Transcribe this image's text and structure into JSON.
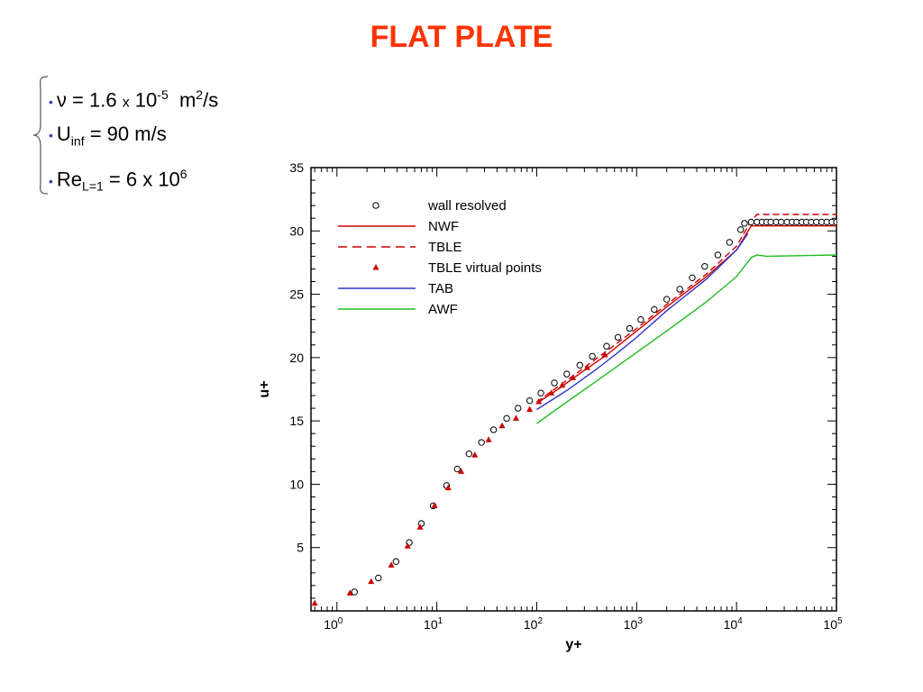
{
  "slide": {
    "title": "FLAT PLATE",
    "params": {
      "nu": {
        "symbol": "ν",
        "eq": " = 1.6 ",
        "x": "x",
        "base": " 10",
        "exp": "-5",
        "unit_pre": "  m",
        "unit_exp": "2",
        "unit_post": "/s"
      },
      "uinf": {
        "main": "U",
        "sub": "inf",
        "rest": " = 90 m/s"
      },
      "re": {
        "main": "Re",
        "sub": "L=1",
        "rest": " = 6 x 10",
        "exp": "6"
      }
    }
  },
  "chart_data": {
    "type": "line",
    "xscale": "log",
    "xlabel": "y+",
    "ylabel": "u+",
    "xlim": [
      0.55,
      100000
    ],
    "ylim": [
      0,
      35
    ],
    "yticks": [
      5,
      10,
      15,
      20,
      25,
      30,
      35
    ],
    "xticks": [
      {
        "base": "10",
        "exp": "0"
      },
      {
        "base": "10",
        "exp": "1"
      },
      {
        "base": "10",
        "exp": "2"
      },
      {
        "base": "10",
        "exp": "3"
      },
      {
        "base": "10",
        "exp": "4"
      },
      {
        "base": "10",
        "exp": "5"
      }
    ],
    "xtick_values": [
      1,
      10,
      100,
      1000,
      10000,
      100000
    ],
    "legend_position": "top-left",
    "series": [
      {
        "name": "wall resolved",
        "kind": "marker-circle",
        "color": "#000000",
        "x": [
          1.5,
          2.6,
          3.9,
          5.3,
          7,
          9.2,
          12.5,
          16,
          21,
          28,
          37,
          50,
          65,
          85,
          110,
          150,
          200,
          270,
          360,
          500,
          650,
          850,
          1100,
          1500,
          2000,
          2700,
          3600,
          4800,
          6500,
          8500,
          11000,
          12000,
          14000,
          16000,
          18000,
          20000,
          22000,
          25000,
          28000,
          32000,
          36000,
          40000,
          45000,
          50000,
          56000,
          63000,
          71000,
          80000,
          90000,
          100000
        ],
        "y": [
          1.5,
          2.6,
          3.9,
          5.4,
          6.9,
          8.3,
          9.9,
          11.2,
          12.4,
          13.3,
          14.3,
          15.2,
          16.0,
          16.6,
          17.2,
          18.0,
          18.7,
          19.4,
          20.1,
          20.9,
          21.6,
          22.3,
          23.0,
          23.8,
          24.6,
          25.4,
          26.3,
          27.2,
          28.1,
          29.1,
          30.1,
          30.6,
          30.7,
          30.7,
          30.7,
          30.7,
          30.7,
          30.7,
          30.7,
          30.7,
          30.7,
          30.7,
          30.7,
          30.7,
          30.7,
          30.7,
          30.7,
          30.7,
          30.7,
          30.7
        ]
      },
      {
        "name": "NWF",
        "kind": "line-solid",
        "color": "#cc0000",
        "x": [
          100,
          150,
          200,
          300,
          500,
          1000,
          2000,
          5000,
          10000,
          14000,
          100000
        ],
        "y": [
          16.4,
          17.3,
          18.0,
          19.0,
          20.2,
          22.1,
          24.0,
          26.4,
          28.5,
          30.4,
          30.4
        ]
      },
      {
        "name": "TBLE",
        "kind": "line-dashed",
        "color": "#cc0000",
        "x": [
          100,
          200,
          500,
          1000,
          2000,
          5000,
          10000,
          14000,
          16000,
          100000
        ],
        "y": [
          16.5,
          18.2,
          20.5,
          22.3,
          24.2,
          26.6,
          28.8,
          30.8,
          31.3,
          31.3
        ]
      },
      {
        "name": "TBLE virtual points",
        "kind": "marker-triangle",
        "color": "#cc0000",
        "x": [
          0.6,
          1.35,
          2.2,
          3.5,
          5.1,
          6.8,
          9.5,
          13,
          17.5,
          24,
          33,
          45,
          62,
          85,
          105,
          140,
          180,
          230,
          320,
          480
        ],
        "y": [
          0.6,
          1.4,
          2.3,
          3.6,
          5.1,
          6.6,
          8.3,
          9.7,
          11.0,
          12.3,
          13.5,
          14.6,
          15.2,
          15.9,
          16.5,
          17.2,
          17.8,
          18.4,
          19.2,
          20.2
        ]
      },
      {
        "name": "TAB",
        "kind": "line-solid",
        "color": "#3333cc",
        "x": [
          100,
          200,
          400,
          700,
          1000,
          2000,
          5000,
          10000,
          13000
        ],
        "y": [
          15.9,
          17.4,
          19.1,
          20.6,
          21.6,
          23.7,
          26.2,
          28.5,
          29.8
        ]
      },
      {
        "name": "AWF",
        "kind": "line-solid",
        "color": "#22bb22",
        "x": [
          100,
          200,
          500,
          1000,
          2000,
          5000,
          10000,
          14000,
          16000,
          20000,
          100000
        ],
        "y": [
          14.8,
          16.5,
          18.7,
          20.4,
          22.1,
          24.4,
          26.4,
          27.9,
          28.1,
          28.0,
          28.1
        ]
      }
    ]
  }
}
